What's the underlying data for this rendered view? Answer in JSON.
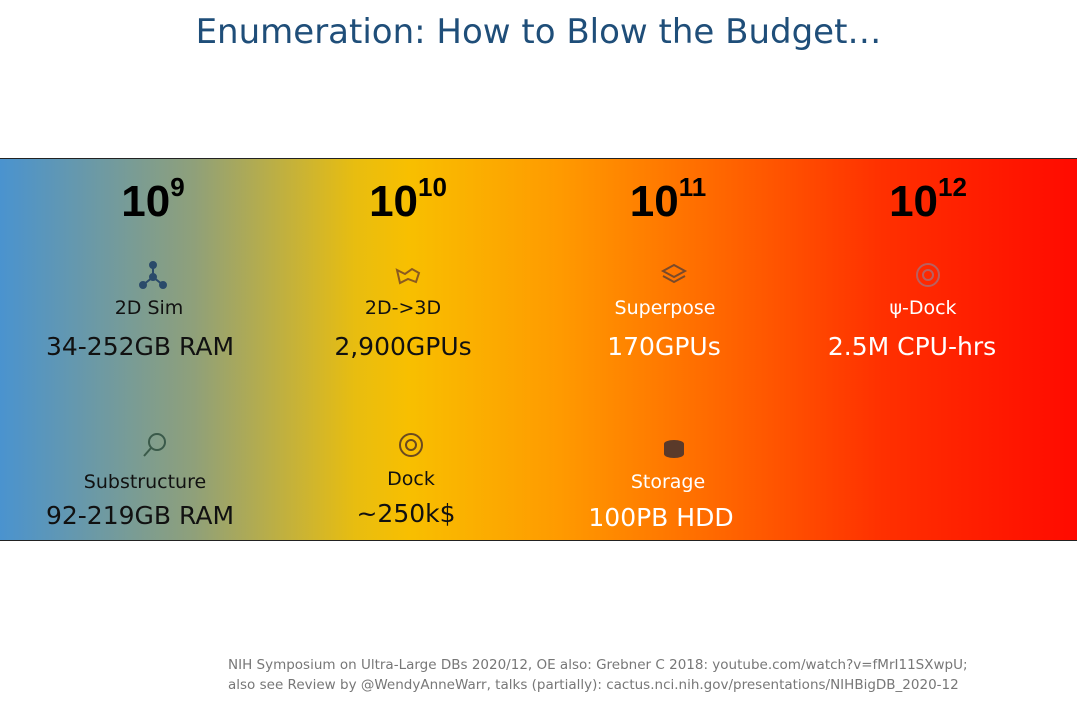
{
  "title": "Enumeration: How to Blow the Budget…",
  "columns": [
    {
      "base": "10",
      "exponent": "9",
      "items": [
        {
          "label": "2D Sim",
          "value": "34-252GB RAM"
        },
        {
          "label": "Substructure",
          "value": "92-219GB RAM"
        }
      ]
    },
    {
      "base": "10",
      "exponent": "10",
      "items": [
        {
          "label": "2D->3D",
          "value": "2,900GPUs"
        },
        {
          "label": "Dock",
          "value": "~250k$"
        }
      ]
    },
    {
      "base": "10",
      "exponent": "11",
      "items": [
        {
          "label": "Superpose",
          "value": "170GPUs"
        },
        {
          "label": "Storage",
          "value": "100PB HDD"
        }
      ]
    },
    {
      "base": "10",
      "exponent": "12",
      "items": [
        {
          "label": "ψ-Dock",
          "value": "2.5M CPU-hrs"
        }
      ]
    }
  ],
  "footer": [
    "NIH Symposium on Ultra-Large DBs 2020/12, OE also: Grebner C 2018: youtube.com/watch?v=fMrI11SXwpU;",
    "also see Review by @WendyAnneWarr, talks (partially): cactus.nci.nih.gov/presentations/NIHBigDB_2020-12"
  ]
}
